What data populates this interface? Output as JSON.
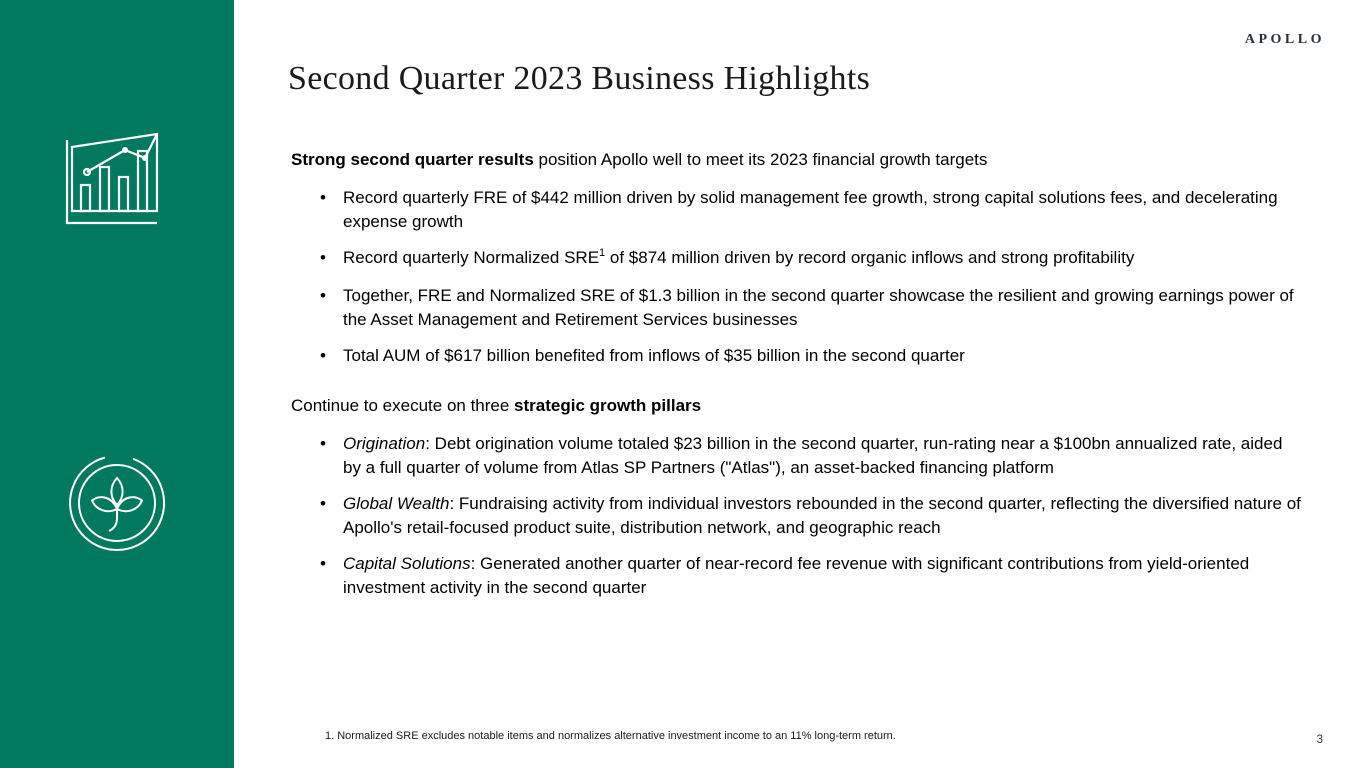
{
  "brand": {
    "logo_text": "APOLLO",
    "sidebar_color": "#00795e",
    "icon_stroke_color": "#ffffff"
  },
  "sidebar": {
    "icons": [
      {
        "name": "bar-chart-trend-icon"
      },
      {
        "name": "plant-growth-icon"
      }
    ]
  },
  "header": {
    "title": "Second Quarter 2023 Business Highlights"
  },
  "content": {
    "sections": [
      {
        "lead": [
          {
            "t": "Strong second quarter results",
            "b": true
          },
          {
            "t": " position Apollo well to meet its 2023 financial growth targets"
          }
        ],
        "bullets": [
          [
            {
              "t": "Record quarterly FRE of $442 million driven by solid management fee growth, strong capital solutions fees, and decelerating expense growth"
            }
          ],
          [
            {
              "t": "Record quarterly Normalized SRE"
            },
            {
              "t": "1",
              "sup": true
            },
            {
              "t": " of $874 million driven by record organic inflows and strong profitability"
            }
          ],
          [
            {
              "t": "Together, FRE and Normalized SRE of $1.3 billion in the second quarter showcase the resilient and growing earnings power of the Asset Management and Retirement Services businesses"
            }
          ],
          [
            {
              "t": "Total AUM of $617 billion benefited from inflows of $35 billion in the second quarter"
            }
          ]
        ]
      },
      {
        "lead": [
          {
            "t": "Continue to execute on three "
          },
          {
            "t": "strategic growth pillars",
            "b": true
          }
        ],
        "bullets": [
          [
            {
              "t": "Origination",
              "i": true
            },
            {
              "t": ": Debt origination volume totaled $23 billion in the second quarter, run-rating near a $100bn annualized rate, aided by a full quarter of volume from Atlas SP Partners (\"Atlas\"), an asset-backed financing platform"
            }
          ],
          [
            {
              "t": "Global Wealth",
              "i": true
            },
            {
              "t": ": Fundraising activity from individual investors rebounded in the second quarter, reflecting the diversified nature of Apollo's retail-focused product suite, distribution network, and geographic reach"
            }
          ],
          [
            {
              "t": "Capital Solutions",
              "i": true
            },
            {
              "t": ": Generated another quarter of near-record fee revenue with significant contributions from yield-oriented investment activity in the second quarter"
            }
          ]
        ]
      }
    ]
  },
  "footer": {
    "footnote": "1. Normalized SRE excludes notable items and normalizes alternative investment income to an 11% long-term return.",
    "page_number": "3"
  }
}
